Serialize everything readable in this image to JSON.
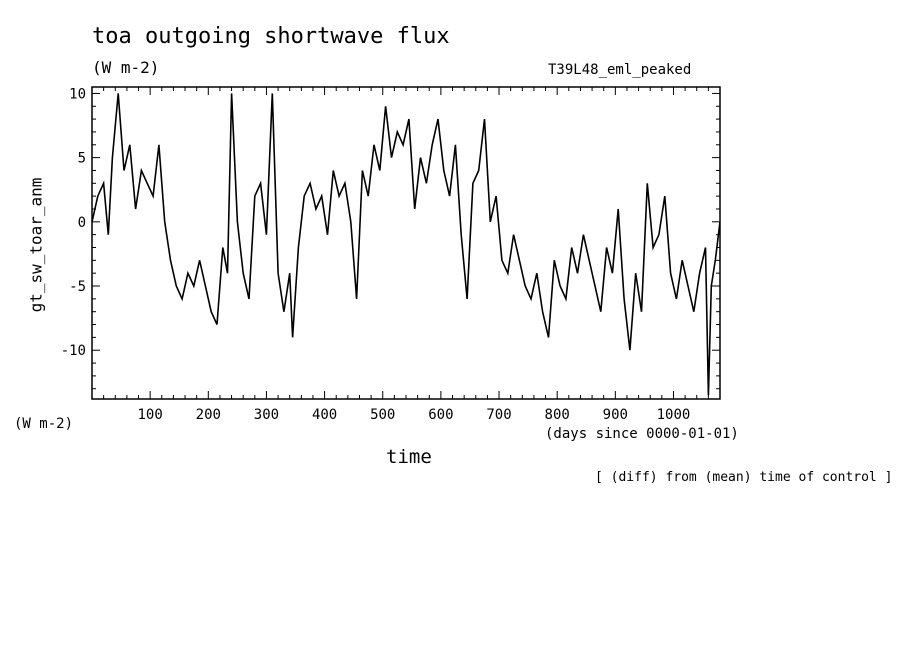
{
  "chart_data": {
    "type": "line",
    "title": "toa outgoing shortwave flux",
    "units": "(W m-2)",
    "run_label": "T39L48_eml_peaked",
    "ylabel": "gt_sw_toar_anm",
    "y_units": "(W m-2)",
    "xlabel": "time",
    "x_unit_label": "(days since 0000-01-01)",
    "note": "[ (diff) from (mean) time of control ]",
    "xlim": [
      0,
      1080
    ],
    "ylim": [
      -13.8,
      10.5
    ],
    "x_ticks": [
      100,
      200,
      300,
      400,
      500,
      600,
      700,
      800,
      900,
      1000
    ],
    "x_tick_labels": [
      "100",
      "200",
      "300",
      "400",
      "500",
      "600",
      "700",
      "800",
      "900",
      "1000"
    ],
    "y_ticks": [
      10,
      5,
      0,
      -5,
      -10
    ],
    "y_tick_labels": [
      "10",
      "5",
      "0",
      "-5",
      "-10"
    ],
    "grid": false,
    "line_color": "#000000",
    "series": [
      {
        "x": [
          0,
          10,
          20,
          28,
          35,
          45,
          55,
          65,
          75,
          85,
          95,
          105,
          115,
          125,
          135,
          145,
          155,
          165,
          175,
          185,
          195,
          205,
          215,
          225,
          233,
          240,
          250,
          260,
          270,
          280,
          290,
          300,
          310,
          320,
          330,
          340,
          345,
          355,
          365,
          375,
          385,
          395,
          405,
          415,
          425,
          435,
          445,
          455,
          465,
          475,
          485,
          495,
          505,
          515,
          525,
          535,
          545,
          555,
          565,
          575,
          585,
          595,
          605,
          615,
          625,
          635,
          645,
          655,
          665,
          675,
          685,
          695,
          705,
          715,
          725,
          735,
          745,
          755,
          765,
          775,
          785,
          795,
          805,
          815,
          825,
          835,
          845,
          855,
          865,
          875,
          885,
          895,
          905,
          915,
          925,
          935,
          945,
          955,
          965,
          975,
          985,
          995,
          1005,
          1015,
          1025,
          1035,
          1045,
          1055,
          1060,
          1065,
          1072,
          1080
        ],
        "y": [
          0,
          2,
          3,
          -1,
          5,
          10,
          4,
          6,
          1,
          4,
          3,
          2,
          6,
          0,
          -3,
          -5,
          -6,
          -4,
          -5,
          -3,
          -5,
          -7,
          -8,
          -2,
          -4,
          10,
          0,
          -4,
          -6,
          2,
          3,
          -1,
          10,
          -4,
          -7,
          -4,
          -9,
          -2,
          2,
          3,
          1,
          2,
          -1,
          4,
          2,
          3,
          0,
          -6,
          4,
          2,
          6,
          4,
          9,
          5,
          7,
          6,
          8,
          1,
          5,
          3,
          6,
          8,
          4,
          2,
          6,
          -1,
          -6,
          3,
          4,
          8,
          0,
          2,
          -3,
          -4,
          -1,
          -3,
          -5,
          -6,
          -4,
          -7,
          -9,
          -3,
          -5,
          -6,
          -2,
          -4,
          -1,
          -3,
          -5,
          -7,
          -2,
          -4,
          1,
          -6,
          -10,
          -4,
          -7,
          3,
          -2,
          -1,
          2,
          -4,
          -6,
          -3,
          -5,
          -7,
          -4,
          -2,
          -13.5,
          -5,
          -3,
          0
        ]
      }
    ]
  }
}
